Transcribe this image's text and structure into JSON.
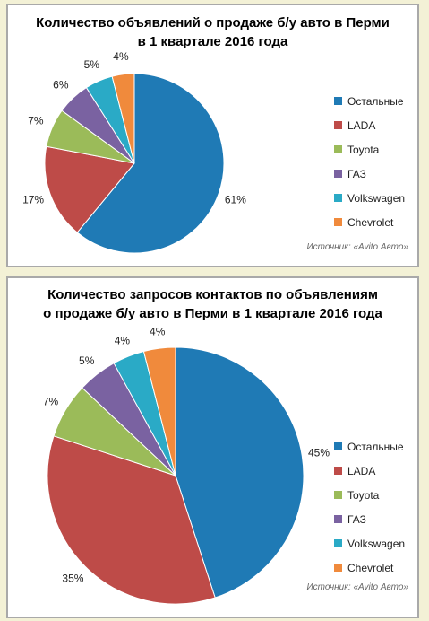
{
  "chart_data": [
    {
      "type": "pie",
      "title_lines": [
        "Количество объявлений о продаже б/у авто в Перми",
        "в 1 квартале 2016 года"
      ],
      "categories": [
        "Остальные",
        "LADA",
        "Toyota",
        "ГАЗ",
        "Volkswagen",
        "Chevrolet"
      ],
      "values": [
        61,
        17,
        7,
        6,
        5,
        4
      ],
      "labels": [
        "61%",
        "17%",
        "7%",
        "6%",
        "5%",
        "4%"
      ],
      "colors": [
        "#1f7ab5",
        "#be4b48",
        "#9bbb59",
        "#7a62a1",
        "#2aaac6",
        "#f08a3c"
      ],
      "legend_position": "right",
      "source": "Источник: «Avito Авто»"
    },
    {
      "type": "pie",
      "title_lines": [
        "Количество запросов контактов по объявлениям",
        "о продаже б/у авто в Перми в 1 квартале 2016 года"
      ],
      "categories": [
        "Остальные",
        "LADA",
        "Toyota",
        "ГАЗ",
        "Volkswagen",
        "Chevrolet"
      ],
      "values": [
        45,
        35,
        7,
        5,
        4,
        4
      ],
      "labels": [
        "45%",
        "35%",
        "7%",
        "5%",
        "4%",
        "4%"
      ],
      "colors": [
        "#1f7ab5",
        "#be4b48",
        "#9bbb59",
        "#7a62a1",
        "#2aaac6",
        "#f08a3c"
      ],
      "legend_position": "right",
      "source": "Источник: «Avito Авто»"
    }
  ]
}
